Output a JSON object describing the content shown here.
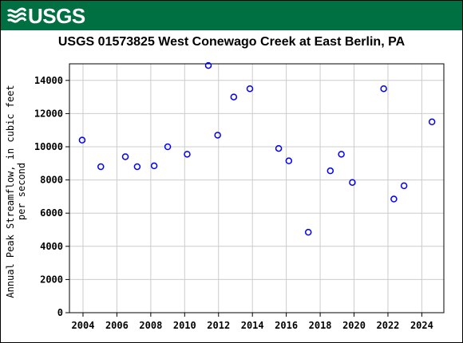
{
  "header": {
    "logo_text": "USGS",
    "brand_color": "#006f41"
  },
  "chart_data": {
    "type": "scatter",
    "title": "USGS 01573825 West Conewago Creek at East Berlin, PA",
    "xlabel": "",
    "ylabel_lines": [
      "Annual Peak Streamflow, in cubic feet",
      "per second"
    ],
    "xlim": [
      2003.2,
      2025.3
    ],
    "ylim": [
      0,
      15000
    ],
    "x_ticks": [
      2004,
      2006,
      2008,
      2010,
      2012,
      2014,
      2016,
      2018,
      2020,
      2022,
      2024
    ],
    "y_ticks": [
      0,
      2000,
      4000,
      6000,
      8000,
      10000,
      12000,
      14000
    ],
    "grid": true,
    "marker_color": "#0000ff",
    "points": [
      {
        "x": 2003.95,
        "y": 10400
      },
      {
        "x": 2005.05,
        "y": 8800
      },
      {
        "x": 2006.5,
        "y": 9400
      },
      {
        "x": 2007.2,
        "y": 8800
      },
      {
        "x": 2008.2,
        "y": 8850
      },
      {
        "x": 2009.0,
        "y": 10000
      },
      {
        "x": 2010.15,
        "y": 9550
      },
      {
        "x": 2011.4,
        "y": 14900
      },
      {
        "x": 2011.95,
        "y": 10700
      },
      {
        "x": 2012.9,
        "y": 13000
      },
      {
        "x": 2013.85,
        "y": 13500
      },
      {
        "x": 2015.55,
        "y": 9900
      },
      {
        "x": 2016.15,
        "y": 9150
      },
      {
        "x": 2017.3,
        "y": 4850
      },
      {
        "x": 2018.6,
        "y": 8550
      },
      {
        "x": 2019.25,
        "y": 9550
      },
      {
        "x": 2019.9,
        "y": 7850
      },
      {
        "x": 2021.75,
        "y": 13500
      },
      {
        "x": 2022.35,
        "y": 6850
      },
      {
        "x": 2022.95,
        "y": 7650
      },
      {
        "x": 2024.6,
        "y": 11500
      }
    ]
  }
}
